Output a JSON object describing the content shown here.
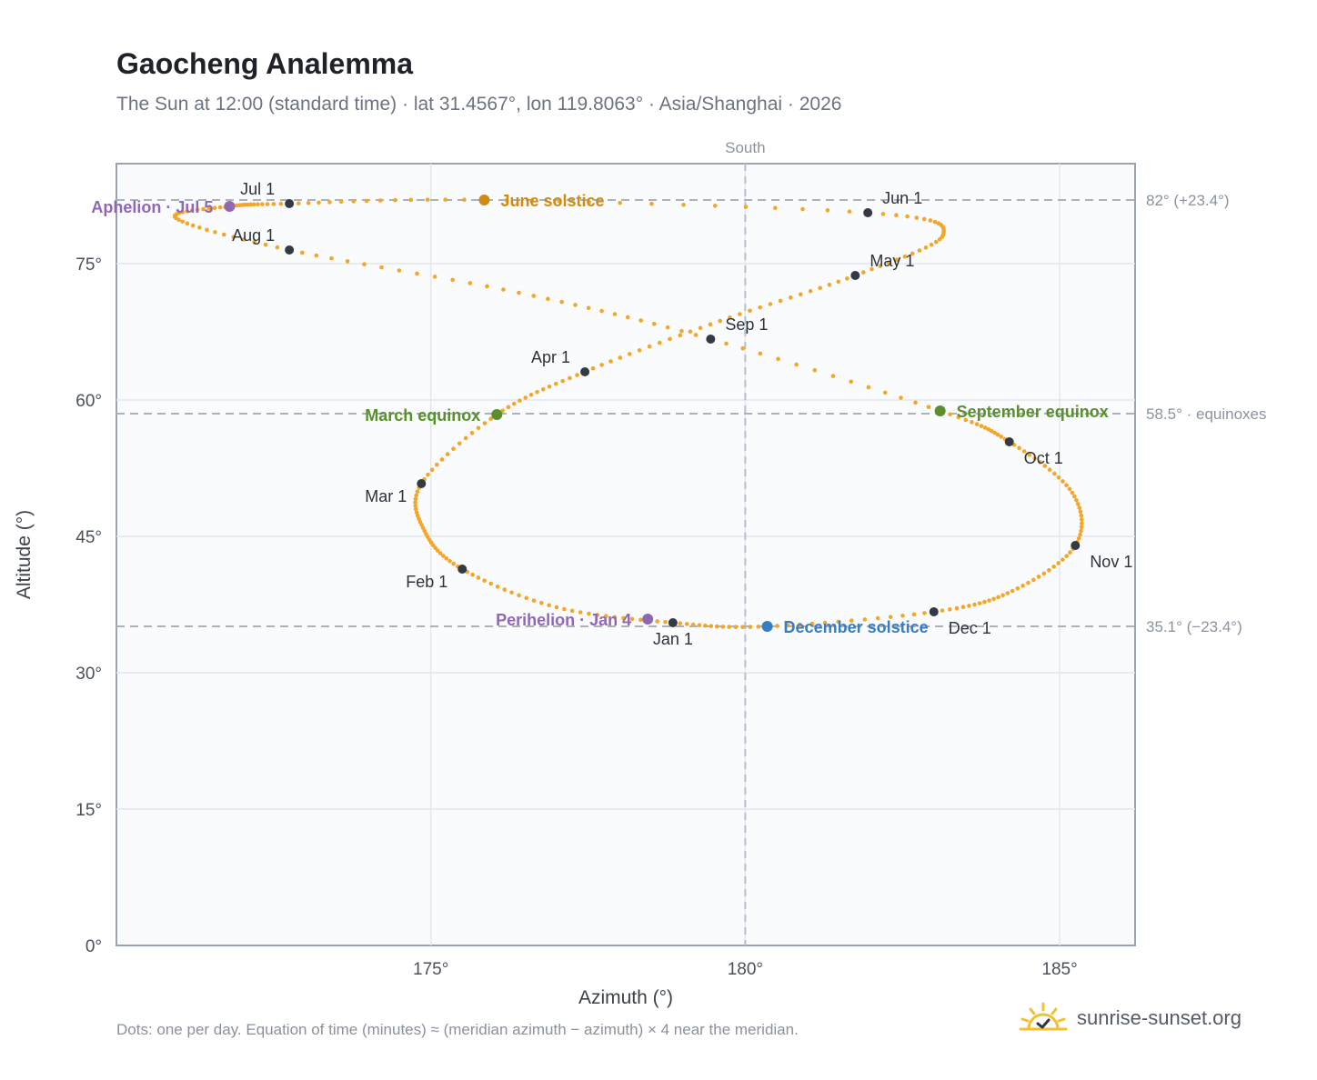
{
  "title": "Gaocheng Analemma",
  "subtitle": "The Sun at 12:00 (standard time) · lat 31.4567°, lon 119.8063° · Asia/Shanghai · 2026",
  "footnote": "Dots: one per day. Equation of time (minutes) ≈ (meridian azimuth − azimuth) × 4 near the meridian.",
  "brand": {
    "name": "sunrise-sunset.org",
    "icon": "sun-logo-icon"
  },
  "colors": {
    "curve": "#f3a627",
    "month_marker": "#343a44",
    "solstice_june": "#d08c10",
    "solstice_december": "#3a7cc2",
    "equinox": "#5b8f2e",
    "aphelion_perihelion": "#8f67b5",
    "reference_line": "#aab2bd",
    "plot_bg": "#f9fbfd",
    "grid": "#e3e8ee"
  },
  "chart_data": {
    "type": "scatter",
    "title": "Gaocheng Analemma",
    "xlabel": "Azimuth (°)",
    "ylabel": "Altitude (°)",
    "xlim": [
      170,
      186.2
    ],
    "ylim": [
      0,
      86
    ],
    "xticks": [
      {
        "value": 175,
        "label": "175°"
      },
      {
        "value": 180,
        "label": "180°"
      },
      {
        "value": 185,
        "label": "185°"
      }
    ],
    "yticks": [
      {
        "value": 0,
        "label": "0°"
      },
      {
        "value": 15,
        "label": "15°"
      },
      {
        "value": 30,
        "label": "30°"
      },
      {
        "value": 45,
        "label": "45°"
      },
      {
        "value": 60,
        "label": "60°"
      },
      {
        "value": 75,
        "label": "75°"
      }
    ],
    "grid": true,
    "meridian": {
      "azimuth": 180,
      "label": "South"
    },
    "reference_lines": [
      {
        "altitude": 82.0,
        "label": "82° (+23.4°)"
      },
      {
        "altitude": 58.5,
        "label": "58.5° · equinoxes"
      },
      {
        "altitude": 35.1,
        "label": "35.1° (−23.4°)"
      }
    ],
    "curve_keypoints": [
      {
        "date": "Jan 1",
        "az": 178.85,
        "alt": 35.5
      },
      {
        "date": "Jan 16",
        "az": 177.0,
        "alt": 37.2
      },
      {
        "date": "Feb 1",
        "az": 175.5,
        "alt": 41.4
      },
      {
        "date": "Feb 15",
        "az": 174.9,
        "alt": 45.6
      },
      {
        "date": "Mar 1",
        "az": 174.85,
        "alt": 50.8
      },
      {
        "date": "Mar 20",
        "az": 176.05,
        "alt": 58.4
      },
      {
        "date": "Apr 1",
        "az": 177.45,
        "alt": 63.1
      },
      {
        "date": "Apr 16",
        "az": 179.6,
        "alt": 68.7
      },
      {
        "date": "May 1",
        "az": 181.75,
        "alt": 73.7
      },
      {
        "date": "May 16",
        "az": 183.15,
        "alt": 78.2
      },
      {
        "date": "Jun 1",
        "az": 181.95,
        "alt": 80.6
      },
      {
        "date": "Jun 21",
        "az": 175.85,
        "alt": 82.0
      },
      {
        "date": "Jul 1",
        "az": 172.75,
        "alt": 81.6
      },
      {
        "date": "Jul 5",
        "az": 171.8,
        "alt": 81.3
      },
      {
        "date": "Jul 16",
        "az": 170.95,
        "alt": 80.0
      },
      {
        "date": "Aug 1",
        "az": 172.75,
        "alt": 76.5
      },
      {
        "date": "Aug 16",
        "az": 176.4,
        "alt": 71.8
      },
      {
        "date": "Sep 1",
        "az": 179.45,
        "alt": 66.7
      },
      {
        "date": "Sep 23",
        "az": 183.1,
        "alt": 58.8
      },
      {
        "date": "Oct 1",
        "az": 184.2,
        "alt": 55.4
      },
      {
        "date": "Oct 16",
        "az": 185.2,
        "alt": 49.8
      },
      {
        "date": "Nov 1",
        "az": 185.25,
        "alt": 44.0
      },
      {
        "date": "Nov 16",
        "az": 184.25,
        "alt": 39.0
      },
      {
        "date": "Dec 1",
        "az": 183.0,
        "alt": 36.7
      },
      {
        "date": "Dec 21",
        "az": 180.35,
        "alt": 35.1
      },
      {
        "date": "Dec 31",
        "az": 178.95,
        "alt": 35.5
      }
    ],
    "month_markers": [
      {
        "label": "Jan 1",
        "az": 178.85,
        "alt": 35.5,
        "pos": "below"
      },
      {
        "label": "Feb 1",
        "az": 175.5,
        "alt": 41.4,
        "pos": "below-left"
      },
      {
        "label": "Mar 1",
        "az": 174.85,
        "alt": 50.8,
        "pos": "below-left"
      },
      {
        "label": "Apr 1",
        "az": 177.45,
        "alt": 63.1,
        "pos": "above-left"
      },
      {
        "label": "May 1",
        "az": 181.75,
        "alt": 73.7,
        "pos": "above-right"
      },
      {
        "label": "Jun 1",
        "az": 181.95,
        "alt": 80.6,
        "pos": "above-right"
      },
      {
        "label": "Jul 1",
        "az": 172.75,
        "alt": 81.6,
        "pos": "above-left"
      },
      {
        "label": "Aug 1",
        "az": 172.75,
        "alt": 76.5,
        "pos": "above-left"
      },
      {
        "label": "Sep 1",
        "az": 179.45,
        "alt": 66.7,
        "pos": "above-right"
      },
      {
        "label": "Oct 1",
        "az": 184.2,
        "alt": 55.4,
        "pos": "below-right"
      },
      {
        "label": "Nov 1",
        "az": 185.25,
        "alt": 44.0,
        "pos": "below-right"
      },
      {
        "label": "Dec 1",
        "az": 183.0,
        "alt": 36.7,
        "pos": "below-right"
      }
    ],
    "events": [
      {
        "label": "June solstice",
        "az": 175.85,
        "alt": 82.0,
        "color": "#d08c10",
        "pos": "right"
      },
      {
        "label": "December solstice",
        "az": 180.35,
        "alt": 35.1,
        "color": "#3a7cc2",
        "pos": "right"
      },
      {
        "label": "March equinox",
        "az": 176.05,
        "alt": 58.4,
        "color": "#5b8f2e",
        "pos": "left"
      },
      {
        "label": "September equinox",
        "az": 183.1,
        "alt": 58.8,
        "color": "#5b8f2e",
        "pos": "right"
      },
      {
        "label": "Aphelion · Jul 5",
        "az": 171.8,
        "alt": 81.3,
        "color": "#8f67b5",
        "pos": "left"
      },
      {
        "label": "Perihelion · Jan 4",
        "az": 178.45,
        "alt": 35.9,
        "color": "#8f67b5",
        "pos": "left"
      }
    ]
  }
}
